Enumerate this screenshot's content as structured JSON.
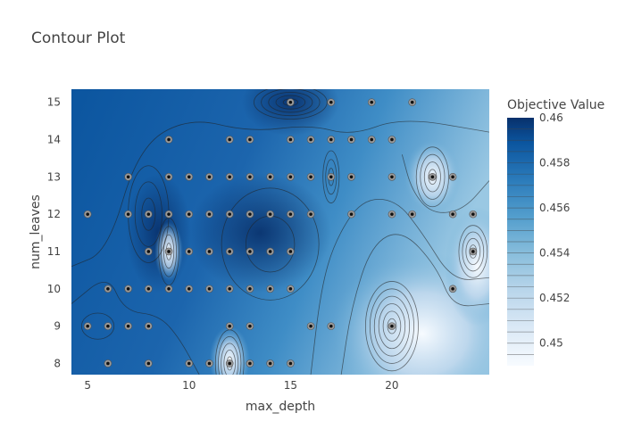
{
  "chart_data": {
    "type": "contour",
    "title": "Contour Plot",
    "xlabel": "max_depth",
    "ylabel": "num_leaves",
    "xlim": [
      4.2,
      24.8
    ],
    "ylim": [
      7.7,
      15.35
    ],
    "x_ticks": [
      5,
      10,
      15,
      20
    ],
    "y_ticks": [
      8,
      9,
      10,
      11,
      12,
      13,
      14,
      15
    ],
    "colorbar": {
      "title": "Objective Value",
      "range": [
        0.449,
        0.46
      ],
      "ticks": [
        0.45,
        0.452,
        0.454,
        0.456,
        0.458,
        0.46
      ],
      "tick_labels": [
        "0.45",
        "0.452",
        "0.454",
        "0.456",
        "0.458",
        "0.46"
      ],
      "colors": [
        "#f7fbff",
        "#dbe9f6",
        "#bad6eb",
        "#89bedc",
        "#539ecd",
        "#2b7bba",
        "#0b559f",
        "#08306b"
      ]
    },
    "grid": false,
    "trials": [
      [
        15,
        15
      ],
      [
        17,
        15
      ],
      [
        19,
        15
      ],
      [
        21,
        15
      ],
      [
        9,
        14
      ],
      [
        12,
        14
      ],
      [
        13,
        14
      ],
      [
        15,
        14
      ],
      [
        16,
        14
      ],
      [
        17,
        14
      ],
      [
        18,
        14
      ],
      [
        19,
        14
      ],
      [
        20,
        14
      ],
      [
        7,
        13
      ],
      [
        9,
        13
      ],
      [
        10,
        13
      ],
      [
        11,
        13
      ],
      [
        12,
        13
      ],
      [
        13,
        13
      ],
      [
        14,
        13
      ],
      [
        15,
        13
      ],
      [
        16,
        13
      ],
      [
        17,
        13
      ],
      [
        18,
        13
      ],
      [
        20,
        13
      ],
      [
        22,
        13
      ],
      [
        23,
        13
      ],
      [
        5,
        12
      ],
      [
        7,
        12
      ],
      [
        8,
        12
      ],
      [
        9,
        12
      ],
      [
        10,
        12
      ],
      [
        11,
        12
      ],
      [
        12,
        12
      ],
      [
        13,
        12
      ],
      [
        14,
        12
      ],
      [
        15,
        12
      ],
      [
        16,
        12
      ],
      [
        18,
        12
      ],
      [
        20,
        12
      ],
      [
        21,
        12
      ],
      [
        23,
        12
      ],
      [
        24,
        12
      ],
      [
        8,
        11
      ],
      [
        9,
        11
      ],
      [
        10,
        11
      ],
      [
        11,
        11
      ],
      [
        12,
        11
      ],
      [
        13,
        11
      ],
      [
        14,
        11
      ],
      [
        15,
        11
      ],
      [
        24,
        11
      ],
      [
        6,
        10
      ],
      [
        7,
        10
      ],
      [
        8,
        10
      ],
      [
        9,
        10
      ],
      [
        10,
        10
      ],
      [
        11,
        10
      ],
      [
        12,
        10
      ],
      [
        13,
        10
      ],
      [
        14,
        10
      ],
      [
        15,
        10
      ],
      [
        23,
        10
      ],
      [
        5,
        9
      ],
      [
        6,
        9
      ],
      [
        7,
        9
      ],
      [
        8,
        9
      ],
      [
        12,
        9
      ],
      [
        13,
        9
      ],
      [
        16,
        9
      ],
      [
        17,
        9
      ],
      [
        20,
        9
      ],
      [
        6,
        8
      ],
      [
        8,
        8
      ],
      [
        10,
        8
      ],
      [
        11,
        8
      ],
      [
        12,
        8
      ],
      [
        13,
        8
      ],
      [
        14,
        8
      ],
      [
        15,
        8
      ]
    ]
  }
}
